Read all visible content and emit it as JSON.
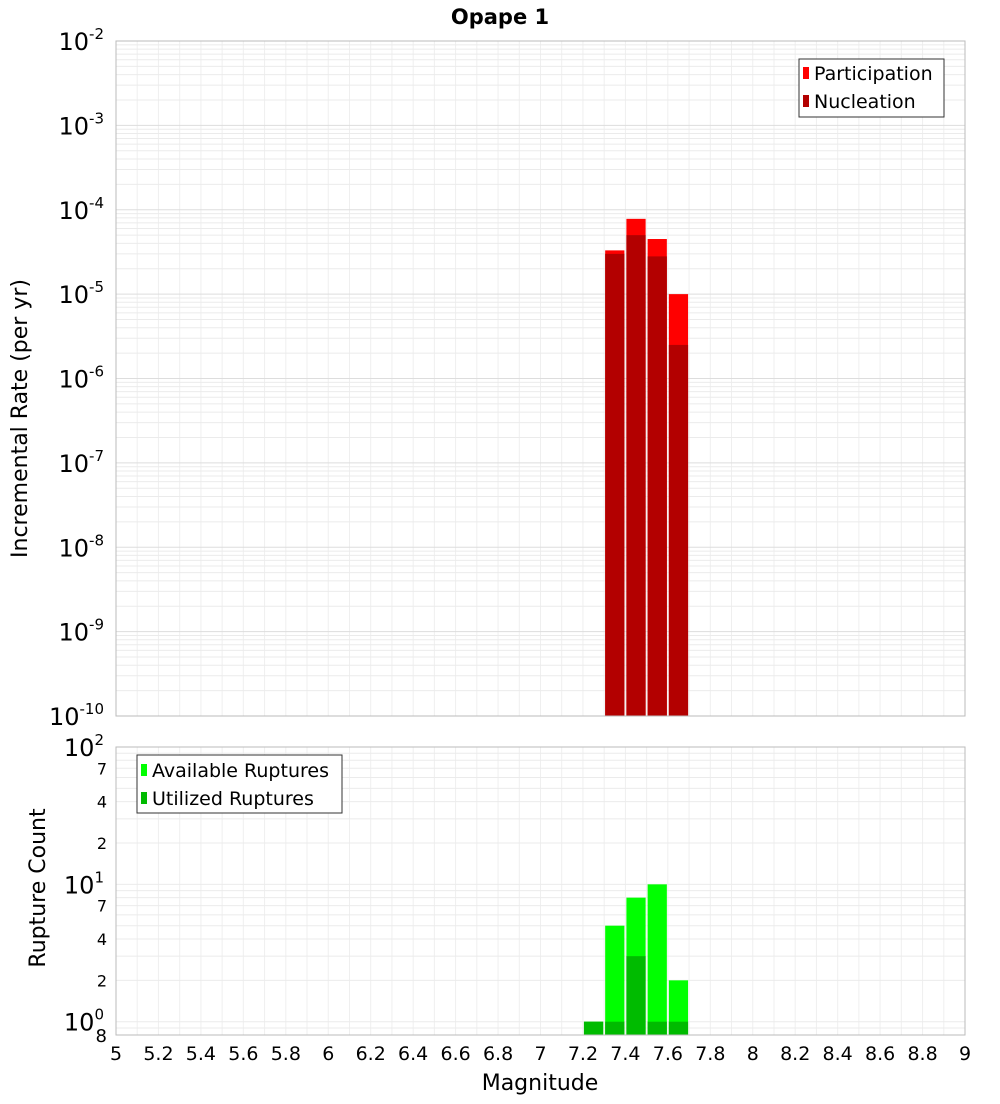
{
  "chart_data": [
    {
      "type": "bar",
      "title": "Opape 1",
      "ylabel": "Incremental Rate (per yr)",
      "xlabel": "",
      "yscale": "log",
      "ylim": [
        1e-10,
        0.01
      ],
      "y_ticks": [
        {
          "base": "10",
          "exp": "-2"
        },
        {
          "base": "10",
          "exp": "-3"
        },
        {
          "base": "10",
          "exp": "-4"
        },
        {
          "base": "10",
          "exp": "-5"
        },
        {
          "base": "10",
          "exp": "-6"
        },
        {
          "base": "10",
          "exp": "-7"
        },
        {
          "base": "10",
          "exp": "-8"
        },
        {
          "base": "10",
          "exp": "-9"
        },
        {
          "base": "10",
          "exp": "-10"
        }
      ],
      "bin_width": 0.1,
      "x": [
        7.35,
        7.45,
        7.55,
        7.65
      ],
      "series": [
        {
          "name": "Participation",
          "color": "#ff0000",
          "values": [
            3.3e-05,
            7.8e-05,
            4.5e-05,
            1e-05
          ]
        },
        {
          "name": "Nucleation",
          "color": "#b30000",
          "values": [
            3e-05,
            5e-05,
            2.8e-05,
            2.5e-06
          ]
        }
      ],
      "legend_position": "top-right",
      "grid": true
    },
    {
      "type": "bar",
      "title": "",
      "ylabel": "Rupture Count",
      "xlabel": "Magnitude",
      "yscale": "log",
      "ylim": [
        0.8,
        100
      ],
      "y_ticks": [
        {
          "value": 100,
          "base": "10",
          "exp": "2"
        },
        {
          "value": 70,
          "label": "7"
        },
        {
          "value": 40,
          "label": "4"
        },
        {
          "value": 20,
          "label": "2"
        },
        {
          "value": 10,
          "base": "10",
          "exp": "1"
        },
        {
          "value": 7,
          "label": "7"
        },
        {
          "value": 4,
          "label": "4"
        },
        {
          "value": 2,
          "label": "2"
        },
        {
          "value": 1,
          "base": "10",
          "exp": "0"
        },
        {
          "value": 0.8,
          "label": "8"
        }
      ],
      "bin_width": 0.1,
      "x": [
        7.25,
        7.35,
        7.45,
        7.55,
        7.65
      ],
      "series": [
        {
          "name": "Available Ruptures",
          "color": "#00ff00",
          "values": [
            1,
            5,
            8,
            10,
            2
          ]
        },
        {
          "name": "Utilized Ruptures",
          "color": "#00bb00",
          "values": [
            1,
            1,
            3,
            1,
            1
          ]
        }
      ],
      "xlim": [
        5,
        9
      ],
      "x_ticks": [
        "5",
        "5.2",
        "5.4",
        "5.6",
        "5.8",
        "6",
        "6.2",
        "6.4",
        "6.6",
        "6.8",
        "7",
        "7.2",
        "7.4",
        "7.6",
        "7.8",
        "8",
        "8.2",
        "8.4",
        "8.6",
        "8.8",
        "9"
      ],
      "legend_position": "top-left",
      "grid": true
    }
  ]
}
